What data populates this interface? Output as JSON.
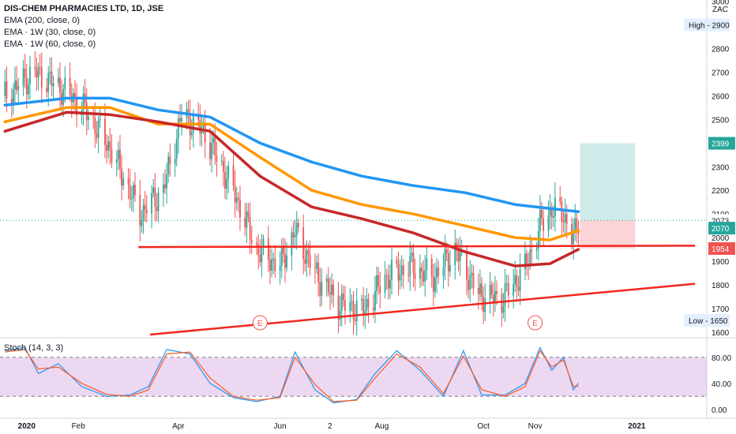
{
  "header": {
    "symbol": "DIS-CHEM PHARMACIES LTD, 1D, JSE",
    "indicators": [
      "EMA (200, close, 0)",
      "EMA · 1W (30, close, 0)",
      "EMA · 1W (60, close, 0)"
    ]
  },
  "currency": "ZAC",
  "stoch_label": "Stoch (14, 3, 3)",
  "chart_data": [
    {
      "type": "candlestick",
      "title": "DIS-CHEM PHARMACIES LTD, 1D, JSE",
      "y_ticks": [
        1600,
        1700,
        1800,
        1900,
        2000,
        2100,
        2200,
        2300,
        2400,
        2500,
        2600,
        2700,
        2800,
        2900,
        3000
      ],
      "ylim": [
        1600,
        3000
      ],
      "x_ticks": [
        "2020",
        "Feb",
        "Apr",
        "Jun",
        "2",
        "Aug",
        "Oct",
        "Nov",
        "2021"
      ],
      "price_labels": {
        "target": "2399",
        "last": "2073",
        "ema": "2070",
        "stop": "1954",
        "high": "High - 2900",
        "low": "Low - 1650"
      },
      "close_series": [
        {
          "x": "2019-12-19",
          "y": 2600
        },
        {
          "x": "2020-01-06",
          "y": 2700
        },
        {
          "x": "2020-01-20",
          "y": 2640
        },
        {
          "x": "2020-02-03",
          "y": 2560
        },
        {
          "x": "2020-02-20",
          "y": 2380
        },
        {
          "x": "2020-03-09",
          "y": 2100
        },
        {
          "x": "2020-03-23",
          "y": 2200
        },
        {
          "x": "2020-04-03",
          "y": 2520
        },
        {
          "x": "2020-04-16",
          "y": 2450
        },
        {
          "x": "2020-05-04",
          "y": 2200
        },
        {
          "x": "2020-05-18",
          "y": 1950
        },
        {
          "x": "2020-06-01",
          "y": 1880
        },
        {
          "x": "2020-06-10",
          "y": 2030
        },
        {
          "x": "2020-06-22",
          "y": 1850
        },
        {
          "x": "2020-07-06",
          "y": 1720
        },
        {
          "x": "2020-07-21",
          "y": 1690
        },
        {
          "x": "2020-08-03",
          "y": 1830
        },
        {
          "x": "2020-08-18",
          "y": 1880
        },
        {
          "x": "2020-09-01",
          "y": 1830
        },
        {
          "x": "2020-09-14",
          "y": 1950
        },
        {
          "x": "2020-09-28",
          "y": 1760
        },
        {
          "x": "2020-10-12",
          "y": 1740
        },
        {
          "x": "2020-10-26",
          "y": 1870
        },
        {
          "x": "2020-11-04",
          "y": 2050
        },
        {
          "x": "2020-11-11",
          "y": 2120
        },
        {
          "x": "2020-11-18",
          "y": 2100
        },
        {
          "x": "2020-11-24",
          "y": 1990
        },
        {
          "x": "2020-11-27",
          "y": 2073
        }
      ],
      "series": [
        {
          "name": "EMA (200, close, 0)",
          "color": "#2196f3",
          "values": [
            {
              "x": "2019-12-19",
              "y": 2560
            },
            {
              "x": "2020-01-25",
              "y": 2590
            },
            {
              "x": "2020-02-20",
              "y": 2590
            },
            {
              "x": "2020-03-20",
              "y": 2540
            },
            {
              "x": "2020-04-20",
              "y": 2510
            },
            {
              "x": "2020-05-20",
              "y": 2400
            },
            {
              "x": "2020-06-20",
              "y": 2320
            },
            {
              "x": "2020-07-20",
              "y": 2260
            },
            {
              "x": "2020-08-20",
              "y": 2220
            },
            {
              "x": "2020-09-20",
              "y": 2190
            },
            {
              "x": "2020-10-20",
              "y": 2140
            },
            {
              "x": "2020-11-27",
              "y": 2110
            }
          ]
        },
        {
          "name": "EMA · 1W (30, close, 0)",
          "color": "#ff9800",
          "values": [
            {
              "x": "2019-12-19",
              "y": 2490
            },
            {
              "x": "2020-01-25",
              "y": 2550
            },
            {
              "x": "2020-02-20",
              "y": 2550
            },
            {
              "x": "2020-03-20",
              "y": 2480
            },
            {
              "x": "2020-04-20",
              "y": 2480
            },
            {
              "x": "2020-05-20",
              "y": 2340
            },
            {
              "x": "2020-06-20",
              "y": 2200
            },
            {
              "x": "2020-07-20",
              "y": 2140
            },
            {
              "x": "2020-08-20",
              "y": 2100
            },
            {
              "x": "2020-09-20",
              "y": 2050
            },
            {
              "x": "2020-10-20",
              "y": 2000
            },
            {
              "x": "2020-11-10",
              "y": 1990
            },
            {
              "x": "2020-11-27",
              "y": 2030
            }
          ]
        },
        {
          "name": "EMA · 1W (60, close, 0)",
          "color": "#c62828",
          "values": [
            {
              "x": "2019-12-19",
              "y": 2450
            },
            {
              "x": "2020-01-25",
              "y": 2530
            },
            {
              "x": "2020-02-20",
              "y": 2520
            },
            {
              "x": "2020-03-20",
              "y": 2490
            },
            {
              "x": "2020-04-20",
              "y": 2450
            },
            {
              "x": "2020-05-20",
              "y": 2260
            },
            {
              "x": "2020-06-20",
              "y": 2130
            },
            {
              "x": "2020-07-20",
              "y": 2080
            },
            {
              "x": "2020-08-20",
              "y": 2020
            },
            {
              "x": "2020-09-20",
              "y": 1940
            },
            {
              "x": "2020-10-20",
              "y": 1880
            },
            {
              "x": "2020-11-10",
              "y": 1890
            },
            {
              "x": "2020-11-27",
              "y": 1950
            }
          ]
        }
      ],
      "trendlines": [
        {
          "color": "#f2261d",
          "from": {
            "x": "2020-03-08",
            "y": 1960
          },
          "to": {
            "x": "2021-02-05",
            "y": 1966
          }
        },
        {
          "color": "#f2261d",
          "from": {
            "x": "2020-03-15",
            "y": 1590
          },
          "to": {
            "x": "2021-02-05",
            "y": 1805
          }
        }
      ],
      "earnings_markers": [
        {
          "x": "2020-05-20",
          "label": "E"
        },
        {
          "x": "2020-11-01",
          "label": "E"
        }
      ],
      "position": {
        "entry": 2073,
        "target": 2399,
        "stop": 1954,
        "from": "2020-11-28",
        "to": "2020-12-31"
      }
    },
    {
      "type": "line",
      "title": "Stoch (14, 3, 3)",
      "y_ticks": [
        "0.00",
        "40.00",
        "80.00"
      ],
      "ylim": [
        -10,
        110
      ],
      "band": [
        20,
        80
      ],
      "series": [
        {
          "name": "%K",
          "color": "#2196f3",
          "values": [
            {
              "x": "2019-12-19",
              "y": 90
            },
            {
              "x": "2019-12-31",
              "y": 95
            },
            {
              "x": "2020-01-08",
              "y": 55
            },
            {
              "x": "2020-01-20",
              "y": 70
            },
            {
              "x": "2020-02-03",
              "y": 35
            },
            {
              "x": "2020-02-18",
              "y": 20
            },
            {
              "x": "2020-03-03",
              "y": 22
            },
            {
              "x": "2020-03-14",
              "y": 35
            },
            {
              "x": "2020-03-25",
              "y": 92
            },
            {
              "x": "2020-04-08",
              "y": 85
            },
            {
              "x": "2020-04-20",
              "y": 40
            },
            {
              "x": "2020-05-04",
              "y": 18
            },
            {
              "x": "2020-05-18",
              "y": 12
            },
            {
              "x": "2020-06-01",
              "y": 20
            },
            {
              "x": "2020-06-10",
              "y": 88
            },
            {
              "x": "2020-06-22",
              "y": 30
            },
            {
              "x": "2020-07-03",
              "y": 10
            },
            {
              "x": "2020-07-17",
              "y": 15
            },
            {
              "x": "2020-07-28",
              "y": 55
            },
            {
              "x": "2020-08-10",
              "y": 90
            },
            {
              "x": "2020-08-24",
              "y": 60
            },
            {
              "x": "2020-09-07",
              "y": 20
            },
            {
              "x": "2020-09-19",
              "y": 90
            },
            {
              "x": "2020-09-30",
              "y": 22
            },
            {
              "x": "2020-10-14",
              "y": 22
            },
            {
              "x": "2020-10-26",
              "y": 40
            },
            {
              "x": "2020-11-04",
              "y": 95
            },
            {
              "x": "2020-11-11",
              "y": 60
            },
            {
              "x": "2020-11-18",
              "y": 80
            },
            {
              "x": "2020-11-24",
              "y": 30
            },
            {
              "x": "2020-11-27",
              "y": 40
            }
          ]
        },
        {
          "name": "%D",
          "color": "#ff5722",
          "values": [
            {
              "x": "2019-12-19",
              "y": 88
            },
            {
              "x": "2019-12-31",
              "y": 92
            },
            {
              "x": "2020-01-08",
              "y": 62
            },
            {
              "x": "2020-01-20",
              "y": 65
            },
            {
              "x": "2020-02-03",
              "y": 40
            },
            {
              "x": "2020-02-18",
              "y": 23
            },
            {
              "x": "2020-03-03",
              "y": 20
            },
            {
              "x": "2020-03-14",
              "y": 30
            },
            {
              "x": "2020-03-25",
              "y": 85
            },
            {
              "x": "2020-04-08",
              "y": 88
            },
            {
              "x": "2020-04-20",
              "y": 48
            },
            {
              "x": "2020-05-04",
              "y": 20
            },
            {
              "x": "2020-05-18",
              "y": 14
            },
            {
              "x": "2020-06-01",
              "y": 18
            },
            {
              "x": "2020-06-10",
              "y": 80
            },
            {
              "x": "2020-06-22",
              "y": 38
            },
            {
              "x": "2020-07-03",
              "y": 12
            },
            {
              "x": "2020-07-17",
              "y": 14
            },
            {
              "x": "2020-07-28",
              "y": 48
            },
            {
              "x": "2020-08-10",
              "y": 85
            },
            {
              "x": "2020-08-24",
              "y": 65
            },
            {
              "x": "2020-09-07",
              "y": 24
            },
            {
              "x": "2020-09-19",
              "y": 82
            },
            {
              "x": "2020-09-30",
              "y": 30
            },
            {
              "x": "2020-10-14",
              "y": 20
            },
            {
              "x": "2020-10-26",
              "y": 35
            },
            {
              "x": "2020-11-04",
              "y": 90
            },
            {
              "x": "2020-11-11",
              "y": 65
            },
            {
              "x": "2020-11-18",
              "y": 76
            },
            {
              "x": "2020-11-24",
              "y": 35
            },
            {
              "x": "2020-11-27",
              "y": 36
            }
          ]
        }
      ]
    }
  ]
}
